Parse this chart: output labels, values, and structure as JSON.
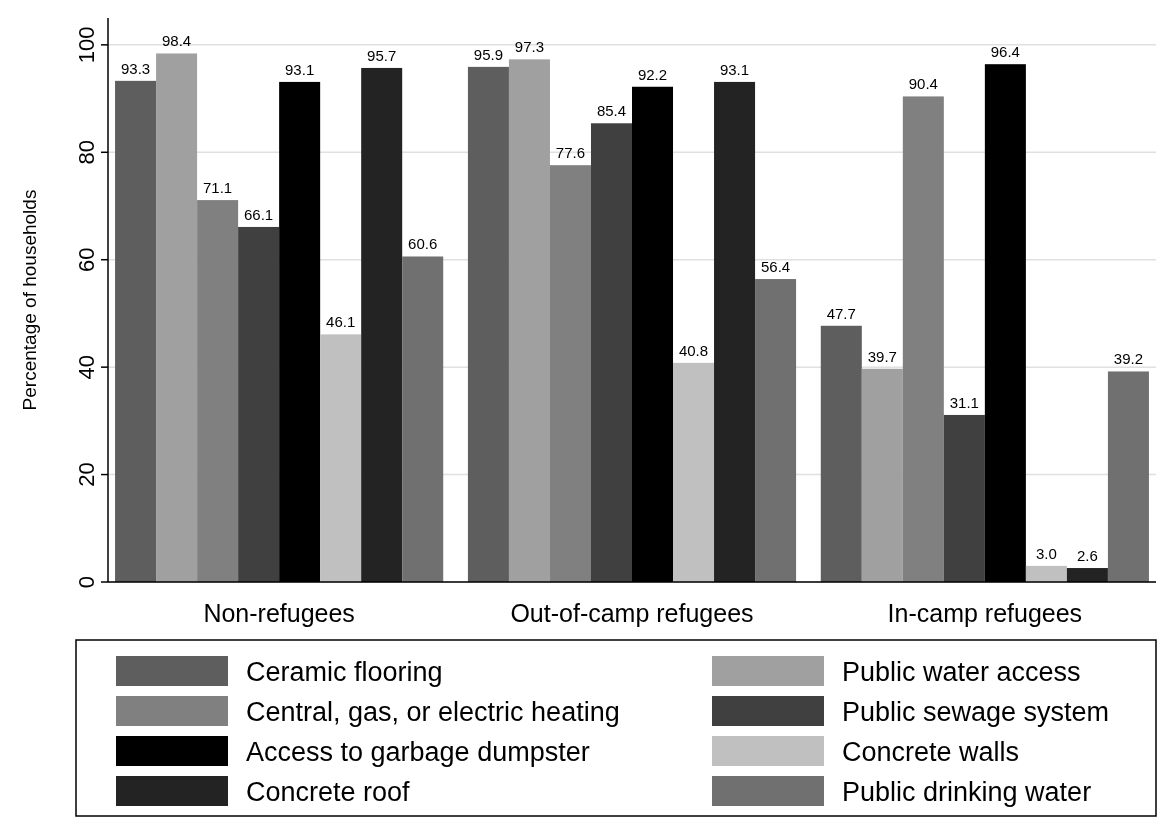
{
  "chart_data": {
    "type": "bar",
    "ylabel": "Percentage of households",
    "categories": [
      "Non-refugees",
      "Out-of-camp refugees",
      "In-camp refugees"
    ],
    "ylim": [
      0,
      105
    ],
    "yticks": [
      0,
      20,
      40,
      60,
      80,
      100
    ],
    "grid": "y",
    "legend": "bottom",
    "series": [
      {
        "name": "Ceramic flooring",
        "color": "#5e5e5e",
        "values": [
          93.3,
          95.9,
          47.7
        ],
        "value_labels": [
          "93.3",
          "95.9",
          "47.7"
        ]
      },
      {
        "name": "Public water access",
        "color": "#a0a0a0",
        "values": [
          98.4,
          97.3,
          39.7
        ],
        "value_labels": [
          "98.4",
          "97.3",
          "39.7"
        ]
      },
      {
        "name": "Central, gas, or electric heating",
        "color": "#808080",
        "values": [
          71.1,
          77.6,
          90.4
        ],
        "value_labels": [
          "71.1",
          "77.6",
          "90.4"
        ]
      },
      {
        "name": "Public sewage system",
        "color": "#404040",
        "values": [
          66.1,
          85.4,
          31.1
        ],
        "value_labels": [
          "66.1",
          "85.4",
          "31.1"
        ]
      },
      {
        "name": "Access to garbage dumpster",
        "color": "#000000",
        "values": [
          93.1,
          92.2,
          96.4
        ],
        "value_labels": [
          "93.1",
          "92.2",
          "96.4"
        ]
      },
      {
        "name": "Concrete walls",
        "color": "#c0c0c0",
        "values": [
          46.1,
          40.8,
          3.0
        ],
        "value_labels": [
          "46.1",
          "40.8",
          "3.0"
        ]
      },
      {
        "name": "Concrete roof",
        "color": "#232323",
        "values": [
          95.7,
          93.1,
          2.6
        ],
        "value_labels": [
          "95.7",
          "93.1",
          "2.6"
        ]
      },
      {
        "name": "Public drinking water",
        "color": "#707070",
        "values": [
          60.6,
          56.4,
          39.2
        ],
        "value_labels": [
          "60.6",
          "56.4",
          "39.2"
        ]
      }
    ]
  }
}
